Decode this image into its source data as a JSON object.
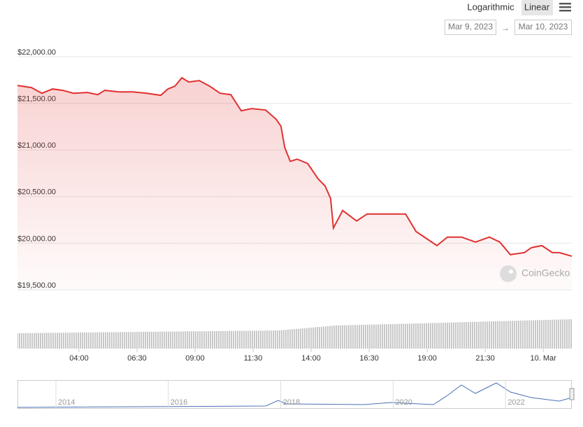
{
  "chart_data": {
    "type": "line",
    "controls": {
      "scales": [
        "Logarithmic",
        "Linear"
      ],
      "selected_scale": "Linear",
      "range_start": "Mar 9, 2023",
      "range_separator": "→",
      "range_end": "Mar 10, 2023"
    },
    "watermark": "CoinGecko",
    "log_scale": false,
    "grid": true,
    "x": [
      1.35,
      1.95,
      2.4,
      2.86,
      3.31,
      3.76,
      4.36,
      4.81,
      5.11,
      5.72,
      6.32,
      6.92,
      7.52,
      7.83,
      8.13,
      8.43,
      8.73,
      9.18,
      9.63,
      10.08,
      10.54,
      10.99,
      11.44,
      12.04,
      12.49,
      12.7,
      12.86,
      13.1,
      13.4,
      13.85,
      14.3,
      14.6,
      14.84,
      14.96,
      15.36,
      15.96,
      16.41,
      17.01,
      17.46,
      18.07,
      18.52,
      18.97,
      19.42,
      19.87,
      20.48,
      21.08,
      21.68,
      22.13,
      22.58,
      23.19,
      23.49,
      23.94,
      24.39,
      24.69,
      25.23
    ],
    "series": [
      {
        "color": "#e03131",
        "values": [
          21691,
          21669,
          21608,
          21654,
          21639,
          21608,
          21616,
          21593,
          21639,
          21623,
          21623,
          21608,
          21586,
          21654,
          21684,
          21774,
          21729,
          21744,
          21684,
          21608,
          21593,
          21420,
          21443,
          21428,
          21330,
          21255,
          21029,
          20878,
          20901,
          20855,
          20690,
          20614,
          20479,
          20163,
          20351,
          20238,
          20313,
          20313,
          20313,
          20313,
          20125,
          20050,
          19974,
          20065,
          20065,
          20012,
          20065,
          20012,
          19877,
          19899,
          19952,
          19974,
          19899,
          19899,
          19861
        ]
      }
    ],
    "xlim": [
      1.35,
      25.23
    ],
    "xticks": [
      {
        "value": 4,
        "label": "04:00"
      },
      {
        "value": 6.5,
        "label": "06:30"
      },
      {
        "value": 9,
        "label": "09:00"
      },
      {
        "value": 11.5,
        "label": "11:30"
      },
      {
        "value": 14,
        "label": "14:00"
      },
      {
        "value": 16.5,
        "label": "16:30"
      },
      {
        "value": 19,
        "label": "19:00"
      },
      {
        "value": 21.5,
        "label": "21:30"
      },
      {
        "value": 24,
        "label": "10. Mar"
      }
    ],
    "ylim": [
      19500,
      22000
    ],
    "yticks": [
      {
        "value": 19500,
        "label": "$19,500.00"
      },
      {
        "value": 20000,
        "label": "$20,000.00"
      },
      {
        "value": 20500,
        "label": "$20,500.00"
      },
      {
        "value": 21000,
        "label": "$21,000.00"
      },
      {
        "value": 21500,
        "label": "$21,500.00"
      },
      {
        "value": 22000,
        "label": "$22,000.00"
      }
    ],
    "navigator": {
      "labels": [
        "2014",
        "2016",
        "2018",
        "2020",
        "2022"
      ]
    }
  }
}
